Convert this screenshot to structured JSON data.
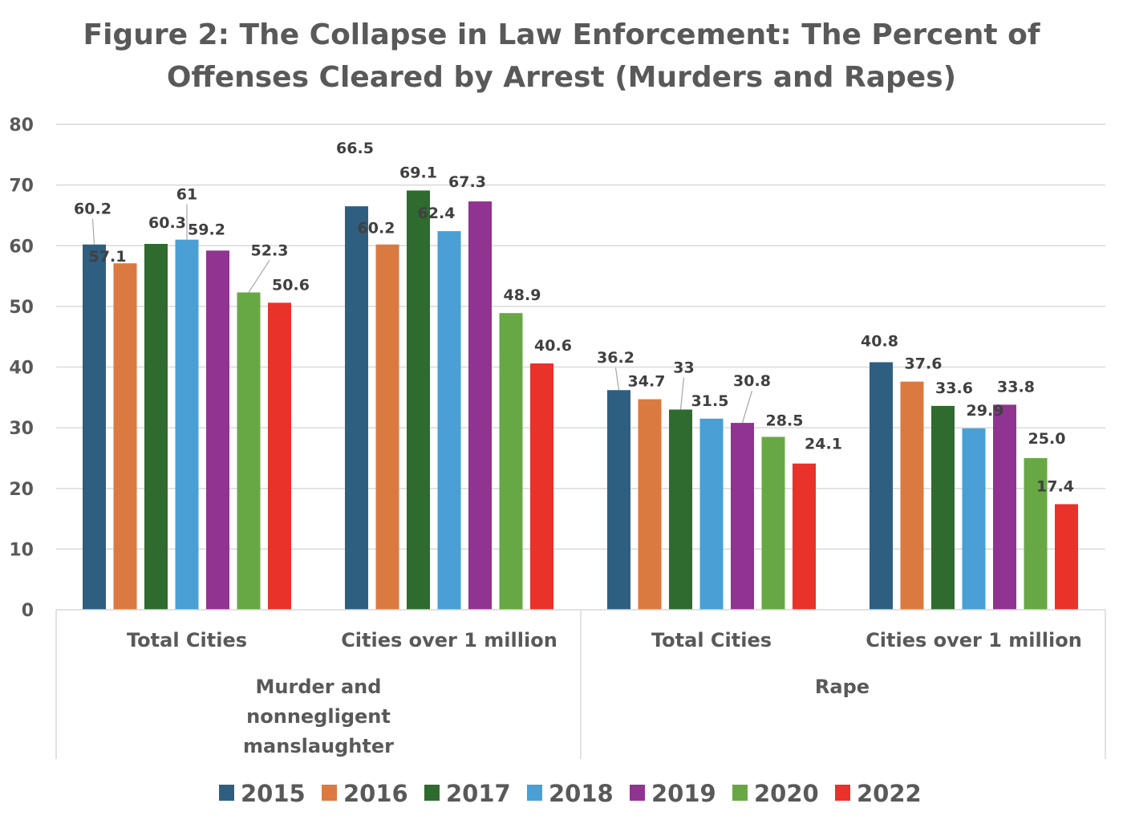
{
  "chart_data": {
    "type": "bar",
    "title": "Figure 2: The Collapse in Law Enforcement: The Percent of Offenses Cleared by Arrest (Murders and Rapes)",
    "title_lines": [
      "Figure 2: The Collapse in Law Enforcement: The Percent of",
      "Offenses Cleared by Arrest (Murders and Rapes)"
    ],
    "xlabel": "",
    "ylabel": "",
    "ylim": [
      0,
      80
    ],
    "yticks": [
      0,
      10,
      20,
      30,
      40,
      50,
      60,
      70,
      80
    ],
    "grid": true,
    "legend_position": "bottom",
    "group_levels": [
      {
        "label_lines": [
          "Murder and",
          "nonnegligent",
          "manslaughter"
        ],
        "categories": [
          "Total Cities",
          "Cities over 1 million"
        ]
      },
      {
        "label_lines": [
          "Rape"
        ],
        "categories": [
          "Total Cities",
          "Cities over 1 million"
        ]
      }
    ],
    "categories": [
      "Murder and nonnegligent manslaughter - Total Cities",
      "Murder and nonnegligent manslaughter - Cities over 1 million",
      "Rape - Total Cities",
      "Rape - Cities over 1 million"
    ],
    "series": [
      {
        "name": "2015",
        "color": "#2e5f80",
        "values": [
          60.2,
          66.5,
          36.2,
          40.8
        ],
        "labels": [
          "60.2",
          "66.5",
          "36.2",
          "40.8"
        ]
      },
      {
        "name": "2016",
        "color": "#db7a40",
        "values": [
          57.1,
          60.2,
          34.7,
          37.6
        ],
        "labels": [
          "57.1",
          "60.2",
          "34.7",
          "37.6"
        ]
      },
      {
        "name": "2017",
        "color": "#2f6b2f",
        "values": [
          60.3,
          69.1,
          33.0,
          33.6
        ],
        "labels": [
          "60.3",
          "69.1",
          "33",
          "33.6"
        ]
      },
      {
        "name": "2018",
        "color": "#4a9fd4",
        "values": [
          61.0,
          62.4,
          31.5,
          29.9
        ],
        "labels": [
          "61",
          "62.4",
          "31.5",
          "29.9"
        ]
      },
      {
        "name": "2019",
        "color": "#913391",
        "values": [
          59.2,
          67.3,
          30.8,
          33.8
        ],
        "labels": [
          "59.2",
          "67.3",
          "30.8",
          "33.8"
        ]
      },
      {
        "name": "2020",
        "color": "#68a844",
        "values": [
          52.3,
          48.9,
          28.5,
          25.0
        ],
        "labels": [
          "52.3",
          "48.9",
          "28.5",
          "25.0"
        ]
      },
      {
        "name": "2022",
        "color": "#e8322a",
        "values": [
          50.6,
          40.6,
          24.1,
          17.4
        ],
        "labels": [
          "50.6",
          "40.6",
          "24.1",
          "17.4"
        ]
      }
    ]
  }
}
